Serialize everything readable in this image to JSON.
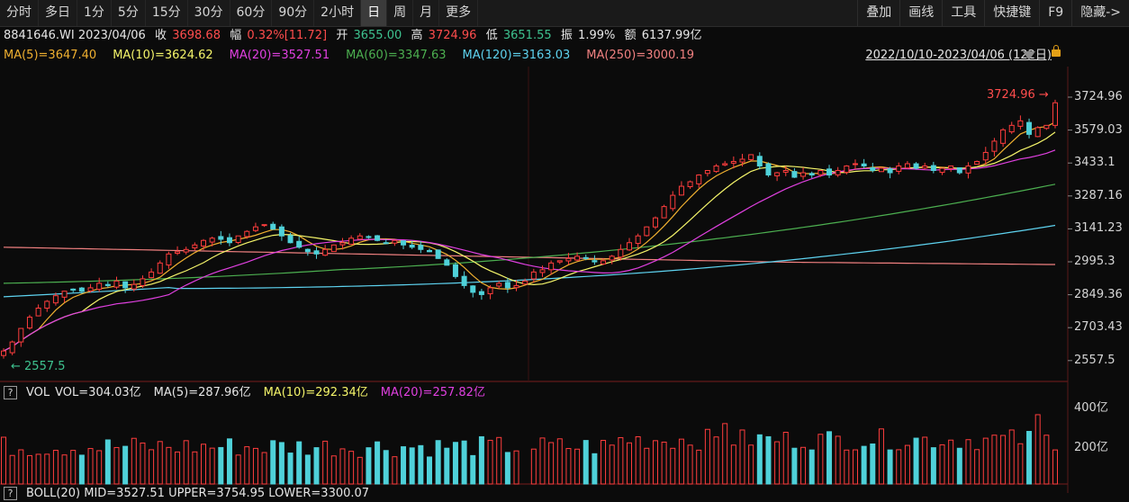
{
  "toolbar": {
    "periods": [
      "分时",
      "多日",
      "1分",
      "5分",
      "15分",
      "30分",
      "60分",
      "90分",
      "2小时",
      "日",
      "周",
      "月",
      "更多"
    ],
    "active_period": "日",
    "tools": [
      "叠加",
      "画线",
      "工具",
      "快捷键",
      "F9",
      "隐藏->"
    ]
  },
  "quote": {
    "code_date": "8841646.WI 2023/04/06",
    "close_label": "收",
    "close": "3698.68",
    "change_label": "幅",
    "change": "0.32%[11.72]",
    "open_label": "开",
    "open": "3655.00",
    "high_label": "高",
    "high": "3724.96",
    "low_label": "低",
    "low": "3651.55",
    "amp_label": "振",
    "amp": "1.99%",
    "amount_label": "额",
    "amount": "6137.99亿"
  },
  "ma": [
    {
      "text": "MA(5)=3647.40",
      "color": "#f0b030"
    },
    {
      "text": "MA(10)=3624.62",
      "color": "#f5f56a"
    },
    {
      "text": "MA(20)=3527.51",
      "color": "#e040e0"
    },
    {
      "text": "MA(60)=3347.63",
      "color": "#4caf50"
    },
    {
      "text": "MA(120)=3163.03",
      "color": "#5ed3f0"
    },
    {
      "text": "MA(250)=3000.19",
      "color": "#f08080"
    }
  ],
  "range_text": "2022/10/10-2023/04/06 (122日)",
  "price_axis": [
    "3724.96",
    "3579.03",
    "3433.1",
    "3287.16",
    "3141.23",
    "2995.3",
    "2849.36",
    "2703.43",
    "2557.5"
  ],
  "marks": {
    "high": "3724.96",
    "low": "2557.5"
  },
  "volume": {
    "label": "VOL",
    "items": [
      {
        "text": "VOL=304.03亿",
        "color": "#e6e6e6"
      },
      {
        "text": "MA(5)=287.96亿",
        "color": "#e6e6e6"
      },
      {
        "text": "MA(10)=292.34亿",
        "color": "#f5f56a"
      },
      {
        "text": "MA(20)=257.82亿",
        "color": "#e040e0"
      }
    ],
    "axis": [
      "400亿",
      "200亿"
    ]
  },
  "boll": {
    "text": "BOLL(20)  MID=3527.51   UPPER=3754.95   LOWER=3300.07"
  },
  "colors": {
    "up": "#ff3d3d",
    "down": "#4fd1d9",
    "bg": "#0b0b0b"
  },
  "chart_data": {
    "type": "candlestick",
    "y_range": [
      2557.5,
      3724.96
    ],
    "closes": [
      2600,
      2640,
      2700,
      2750,
      2790,
      2820,
      2845,
      2865,
      2870,
      2865,
      2880,
      2900,
      2890,
      2910,
      2880,
      2895,
      2920,
      2950,
      2990,
      3030,
      3040,
      3050,
      3070,
      3090,
      3100,
      3095,
      3080,
      3110,
      3130,
      3150,
      3160,
      3140,
      3110,
      3080,
      3060,
      3040,
      3030,
      3050,
      3070,
      3080,
      3100,
      3110,
      3105,
      3090,
      3080,
      3090,
      3070,
      3060,
      3050,
      3040,
      3010,
      2980,
      2930,
      2890,
      2860,
      2850,
      2880,
      2900,
      2880,
      2890,
      2910,
      2950,
      2960,
      2990,
      3000,
      3010,
      3020,
      3010,
      2995,
      3000,
      3020,
      3050,
      3080,
      3110,
      3150,
      3190,
      3240,
      3290,
      3330,
      3350,
      3380,
      3400,
      3420,
      3430,
      3440,
      3450,
      3470,
      3420,
      3380,
      3390,
      3400,
      3370,
      3390,
      3380,
      3400,
      3380,
      3400,
      3420,
      3430,
      3420,
      3400,
      3410,
      3390,
      3420,
      3430,
      3410,
      3420,
      3400,
      3410,
      3420,
      3390,
      3420,
      3440,
      3480,
      3530,
      3580,
      3600,
      3620,
      3560,
      3590,
      3600,
      3700
    ]
  }
}
